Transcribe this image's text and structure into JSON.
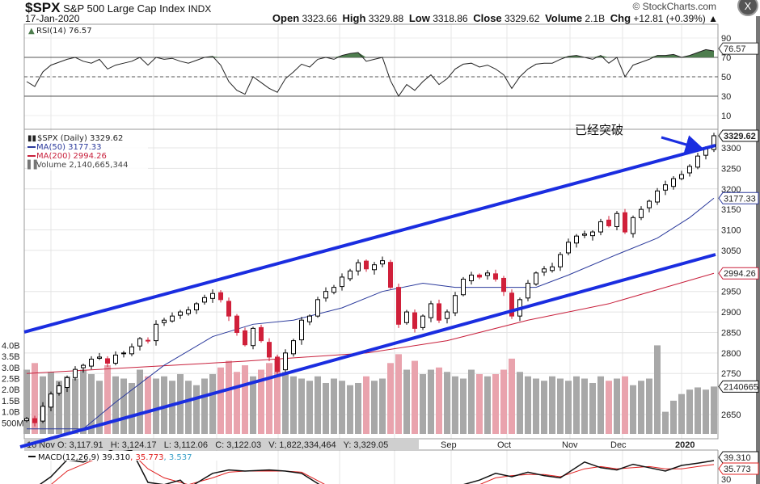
{
  "header": {
    "symbol": "$SPX",
    "name": "S&P 500 Large Cap Index",
    "exchange": "INDX",
    "date": "17-Jan-2020",
    "copyright": "© StockCharts.com",
    "open_label": "Open",
    "open": "3323.66",
    "high_label": "High",
    "high": "3329.88",
    "low_label": "Low",
    "low": "3318.86",
    "close_label": "Close",
    "close": "3329.62",
    "volume_label": "Volume",
    "volume": "2.1B",
    "chg_label": "Chg",
    "chg": "+12.81 (+0.39%) ▲",
    "close_button": "X"
  },
  "annotation": {
    "text": "已经突破"
  },
  "crosshair_bar": "16 Nov O: 3,117.91   H: 3,124.17   L: 3,112.06   C: 3,122.03   V: 1,822,334,464   Y: 3,329.05",
  "colors": {
    "up": "#000000",
    "down": "#d0203a",
    "ma50": "#2b3a9c",
    "ma200": "#c8203c",
    "trend": "#1a2de0",
    "vol_up": "#a8a8a8",
    "vol_down": "#e9a3ad",
    "rsi_fill": "#4e7d4e"
  },
  "chart_data": [
    {
      "type": "line",
      "title": "RSI(14) 76.57",
      "legend": "RSI(14) 76.57",
      "last_label": "76.57",
      "yticks": [
        "90",
        "70",
        "50",
        "30",
        "10"
      ],
      "ytick_values": [
        90,
        70,
        50,
        30,
        10
      ],
      "ylim": [
        5,
        95
      ],
      "values": [
        45,
        40,
        55,
        62,
        65,
        68,
        70,
        66,
        64,
        68,
        58,
        62,
        64,
        66,
        70,
        62,
        70,
        68,
        69,
        66,
        64,
        67,
        70,
        71,
        62,
        45,
        36,
        32,
        50,
        44,
        38,
        34,
        48,
        55,
        63,
        60,
        68,
        70,
        68,
        72,
        74,
        75,
        66,
        68,
        70,
        46,
        30,
        42,
        36,
        45,
        52,
        42,
        48,
        58,
        63,
        64,
        60,
        62,
        58,
        52,
        38,
        50,
        58,
        63,
        64,
        64,
        68,
        71,
        72,
        70,
        68,
        72,
        64,
        70,
        50,
        62,
        65,
        68,
        72,
        72,
        73,
        70,
        72,
        75,
        78,
        76.57
      ]
    },
    {
      "type": "candlestick",
      "title": "$SPX (Daily) 3329.62",
      "legend": [
        "$SPX (Daily) 3329.62",
        "MA(50) 3177.33",
        "MA(200) 2994.26",
        "Volume 2,140,665,344"
      ],
      "yticks": [
        "3300",
        "3250",
        "3200",
        "3150",
        "3100",
        "3050",
        "2950",
        "2900",
        "2850",
        "2800",
        "2750",
        "2650"
      ],
      "ytick_values": [
        3300,
        3250,
        3200,
        3150,
        3100,
        3050,
        2950,
        2900,
        2850,
        2800,
        2750,
        2650
      ],
      "ylim": [
        2600,
        3340
      ],
      "xticks": [
        "Sep",
        "Oct",
        "Nov",
        "Dec",
        "2020"
      ],
      "xtick_index": [
        52,
        59,
        67,
        73,
        81
      ],
      "last_labels": {
        "close": "3329.62",
        "ma50": "3177.33",
        "ma200": "2994.26",
        "volume": "2140665"
      },
      "close": [
        2640,
        2630,
        2670,
        2700,
        2720,
        2740,
        2760,
        2770,
        2785,
        2790,
        2775,
        2795,
        2800,
        2815,
        2835,
        2830,
        2870,
        2880,
        2890,
        2900,
        2905,
        2920,
        2935,
        2945,
        2930,
        2890,
        2850,
        2820,
        2860,
        2830,
        2790,
        2755,
        2800,
        2830,
        2880,
        2890,
        2930,
        2950,
        2960,
        2985,
        3000,
        3020,
        3005,
        3015,
        3025,
        2960,
        2870,
        2900,
        2860,
        2890,
        2920,
        2880,
        2900,
        2940,
        2980,
        2990,
        2985,
        2995,
        2980,
        2950,
        2890,
        2930,
        2970,
        2995,
        3005,
        3010,
        3040,
        3070,
        3085,
        3090,
        3095,
        3120,
        3110,
        3140,
        3095,
        3130,
        3150,
        3170,
        3195,
        3210,
        3225,
        3235,
        3255,
        3280,
        3300,
        3329.62
      ],
      "ma50": [
        [
          0,
          2615
        ],
        [
          7,
          2615
        ],
        [
          11,
          2680
        ],
        [
          17,
          2770
        ],
        [
          23,
          2840
        ],
        [
          28,
          2870
        ],
        [
          33,
          2880
        ],
        [
          39,
          2910
        ],
        [
          44,
          2950
        ],
        [
          49,
          2970
        ],
        [
          53,
          2960
        ],
        [
          59,
          2960
        ],
        [
          63,
          2960
        ],
        [
          67,
          2990
        ],
        [
          73,
          3040
        ],
        [
          78,
          3080
        ],
        [
          82,
          3130
        ],
        [
          85,
          3177.33
        ]
      ],
      "ma200": [
        [
          0,
          2750
        ],
        [
          27,
          2780
        ],
        [
          42,
          2800
        ],
        [
          52,
          2830
        ],
        [
          62,
          2880
        ],
        [
          72,
          2920
        ],
        [
          85,
          2994.26
        ]
      ],
      "volume_axis": [
        "4.0B",
        "3.5B",
        "3.0B",
        "2.5B",
        "2.0B",
        "1.5B",
        "1.0B",
        "500M"
      ],
      "volume_axis_values": [
        4.0,
        3.5,
        3.0,
        2.5,
        2.0,
        1.5,
        1.0,
        0.5
      ],
      "volume_billions": [
        2.9,
        3.2,
        2.6,
        2.8,
        2.4,
        2.6,
        2.5,
        2.9,
        2.7,
        2.4,
        3.1,
        2.6,
        2.5,
        2.3,
        2.9,
        2.6,
        2.5,
        2.6,
        2.4,
        2.7,
        2.4,
        2.2,
        2.5,
        2.7,
        3.0,
        3.3,
        2.8,
        3.1,
        2.6,
        2.9,
        3.2,
        3.4,
        2.8,
        2.6,
        2.5,
        2.4,
        2.6,
        2.3,
        2.5,
        2.4,
        2.2,
        2.3,
        2.6,
        2.4,
        2.5,
        3.2,
        3.6,
        2.9,
        3.3,
        2.7,
        2.9,
        3.0,
        2.8,
        2.6,
        2.5,
        2.9,
        2.7,
        2.6,
        2.7,
        2.9,
        3.4,
        2.8,
        2.6,
        2.5,
        2.4,
        2.6,
        2.5,
        2.4,
        2.6,
        2.5,
        2.3,
        2.6,
        2.4,
        2.5,
        2.6,
        2.2,
        2.4,
        2.5,
        4.0,
        1.0,
        1.5,
        1.8,
        2.0,
        2.1,
        2.0,
        2.14
      ],
      "trendlines": [
        {
          "name": "upper channel",
          "from": [
            -0.3,
            2851
          ],
          "to": [
            85.2,
            3306
          ]
        },
        {
          "name": "lower channel",
          "from": [
            -0.8,
            2571
          ],
          "to": [
            85.2,
            3040
          ]
        }
      ]
    },
    {
      "type": "line",
      "title": "MACD(12,26,9) 39.310, 35.773, 3.537",
      "legend": {
        "label": "MACD(12,26,9)",
        "macd": "39.310",
        "signal": "35.773",
        "hist": "3.537"
      },
      "yticks": [
        "30"
      ],
      "last_labels": {
        "macd": "39.310",
        "signal": "35.773"
      },
      "macd": [
        [
          0,
          10
        ],
        [
          3,
          25
        ],
        [
          5,
          40
        ],
        [
          7,
          38
        ],
        [
          9,
          44
        ],
        [
          11,
          50
        ],
        [
          13,
          48
        ],
        [
          15,
          20
        ],
        [
          17,
          18
        ],
        [
          19,
          22
        ],
        [
          20,
          15
        ],
        [
          23,
          28
        ],
        [
          25,
          31
        ],
        [
          27,
          30
        ],
        [
          30,
          31
        ],
        [
          32,
          30
        ],
        [
          34,
          28
        ],
        [
          38,
          10
        ],
        [
          50,
          10
        ],
        [
          56,
          22
        ],
        [
          58,
          28
        ],
        [
          60,
          25
        ],
        [
          62,
          29
        ],
        [
          64,
          26
        ],
        [
          66,
          24
        ],
        [
          69,
          38
        ],
        [
          71,
          33
        ],
        [
          73,
          31
        ],
        [
          75,
          36
        ],
        [
          77,
          33
        ],
        [
          79,
          30
        ],
        [
          81,
          35
        ],
        [
          83,
          37
        ],
        [
          85,
          39.31
        ]
      ],
      "signal": [
        [
          0,
          5
        ],
        [
          3,
          18
        ],
        [
          5,
          30
        ],
        [
          7,
          36
        ],
        [
          9,
          42
        ],
        [
          11,
          46
        ],
        [
          13,
          46
        ],
        [
          15,
          32
        ],
        [
          17,
          24
        ],
        [
          19,
          20
        ],
        [
          20,
          18
        ],
        [
          23,
          24
        ],
        [
          25,
          29
        ],
        [
          27,
          30
        ],
        [
          30,
          30
        ],
        [
          32,
          30
        ],
        [
          34,
          29
        ],
        [
          38,
          14
        ],
        [
          50,
          8
        ],
        [
          56,
          18
        ],
        [
          58,
          24
        ],
        [
          60,
          26
        ],
        [
          62,
          27
        ],
        [
          64,
          27
        ],
        [
          66,
          25
        ],
        [
          69,
          32
        ],
        [
          71,
          34
        ],
        [
          73,
          32
        ],
        [
          75,
          33
        ],
        [
          77,
          34
        ],
        [
          79,
          32
        ],
        [
          81,
          32
        ],
        [
          83,
          34
        ],
        [
          85,
          35.77
        ]
      ]
    }
  ]
}
